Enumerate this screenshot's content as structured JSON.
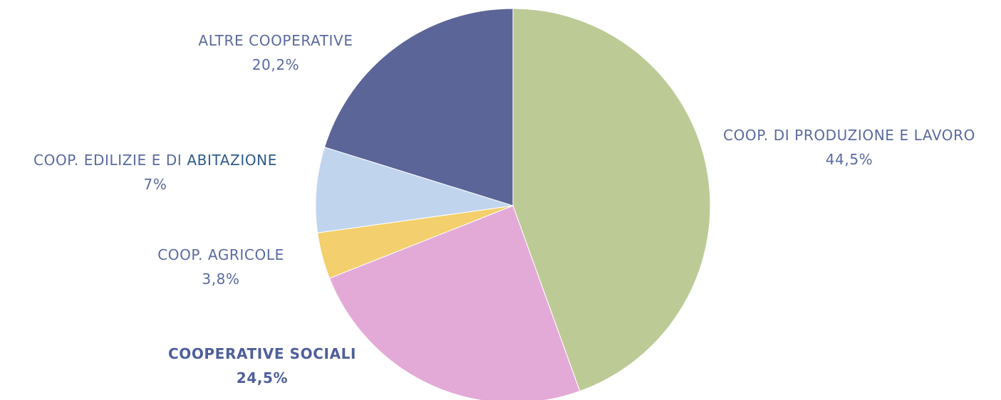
{
  "chart_data": {
    "type": "pie",
    "start_angle_deg": 0,
    "direction": "clockwise",
    "slices": [
      {
        "label": "COOP. DI PRODUZIONE E LAVORO",
        "value": 44.5,
        "value_label": "44,5%",
        "color": "#bccb96"
      },
      {
        "label": "COOPERATIVE SOCIALI",
        "value": 24.5,
        "value_label": "24,5%",
        "color": "#e3aad8"
      },
      {
        "label": "COOP. AGRICOLE",
        "value": 3.8,
        "value_label": "3,8%",
        "color": "#f3cf6d"
      },
      {
        "label": "COOP. EDILIZIE E DI ABITAZIONE",
        "label_parts": [
          "COOP. EDILIZIE E DI ",
          "ABITAZIONE"
        ],
        "value": 7,
        "value_label": "7%",
        "color": "#c0d4ee"
      },
      {
        "label": "ALTRE COOPERATIVE",
        "value": 20.2,
        "value_label": "20,2%",
        "color": "#5b6597"
      }
    ]
  }
}
